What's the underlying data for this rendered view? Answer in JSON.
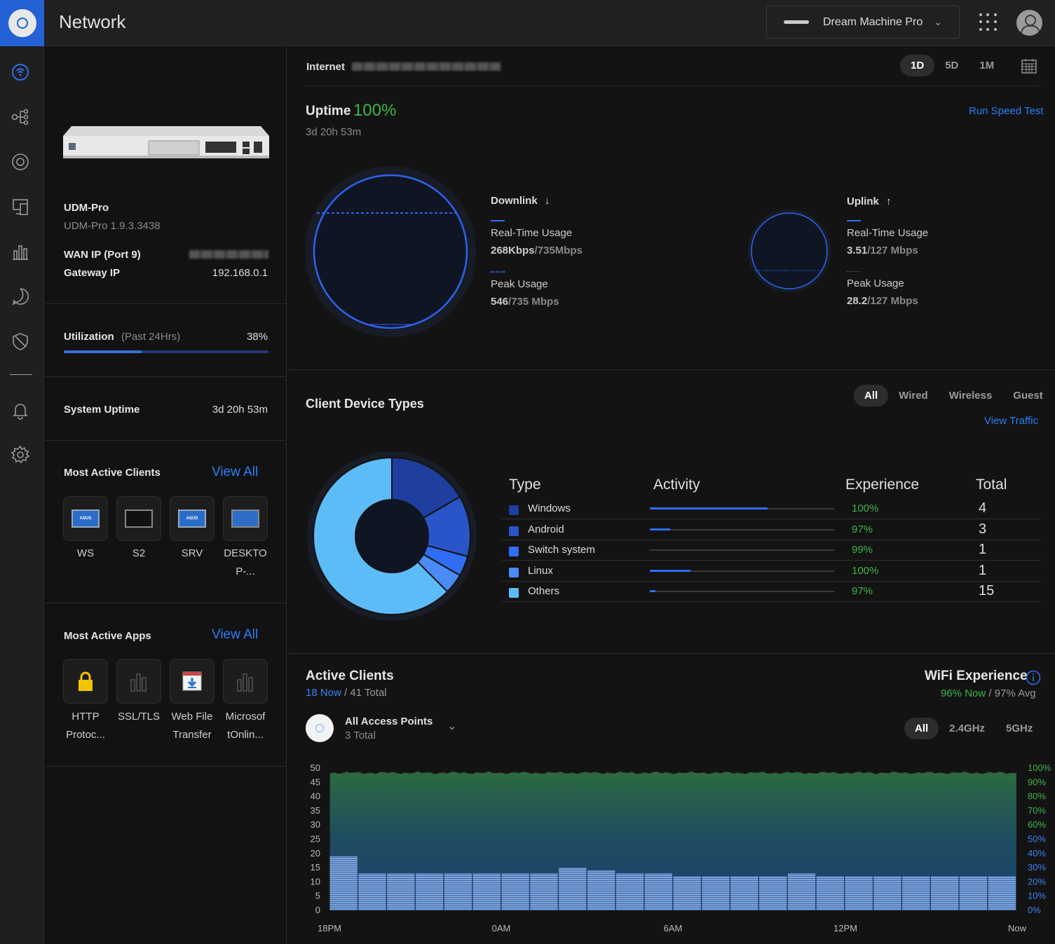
{
  "topbar": {
    "title": "Network",
    "device": "Dream Machine Pro"
  },
  "sidebar": {
    "items": [
      "dashboard",
      "topology",
      "devices",
      "clients",
      "statistics",
      "insights",
      "security",
      "notifications",
      "settings"
    ]
  },
  "device": {
    "model": "UDM-Pro",
    "version": "UDM-Pro 1.9.3.3438",
    "wan_label": "WAN IP (Port 9)",
    "gateway_label": "Gateway IP",
    "gateway_value": "192.168.0.1"
  },
  "utilization": {
    "label": "Utilization",
    "period": "(Past 24Hrs)",
    "value": "38%",
    "fraction": 0.38
  },
  "system_uptime": {
    "label": "System Uptime",
    "value": "3d 20h 53m"
  },
  "active_clients_panel": {
    "title": "Most Active Clients",
    "view_all": "View All",
    "clients": [
      {
        "name": "WS",
        "line2": ""
      },
      {
        "name": "S2",
        "line2": ""
      },
      {
        "name": "SRV",
        "line2": ""
      },
      {
        "name": "DESKTO",
        "line2": "P-..."
      }
    ]
  },
  "active_apps_panel": {
    "title": "Most Active Apps",
    "view_all": "View All",
    "apps": [
      {
        "line1": "HTTP",
        "line2": "Protoc..."
      },
      {
        "line1": "SSL/TLS",
        "line2": ""
      },
      {
        "line1": "Web File",
        "line2": "Transfer"
      },
      {
        "line1": "Microsof",
        "line2": "tOnlin..."
      }
    ]
  },
  "internet": {
    "label": "Internet",
    "ranges": [
      "1D",
      "5D",
      "1M"
    ],
    "uptime_label": "Uptime",
    "uptime_value": "100%",
    "uptime_duration": "3d 20h 53m",
    "speed_test": "Run Speed Test",
    "downlink": {
      "label": "Downlink",
      "arrow": "↓",
      "rt_label": "Real-Time Usage",
      "rt_value": "268Kbps",
      "rt_max": "/735Mbps",
      "peak_label": "Peak Usage",
      "peak_value": "546",
      "peak_max": "/735 Mbps"
    },
    "uplink": {
      "label": "Uplink",
      "arrow": "↑",
      "rt_label": "Real-Time Usage",
      "rt_value": "3.51",
      "rt_max": "/127 Mbps",
      "peak_label": "Peak Usage",
      "peak_value": "28.2",
      "peak_max": "/127 Mbps"
    }
  },
  "client_types": {
    "title": "Client Device Types",
    "filters": [
      "All",
      "Wired",
      "Wireless",
      "Guest"
    ],
    "view_traffic": "View Traffic",
    "headers": {
      "type": "Type",
      "activity": "Activity",
      "experience": "Experience",
      "total": "Total"
    },
    "rows": [
      {
        "type": "Windows",
        "activity": 0.64,
        "experience": "100%",
        "total": "4",
        "color": "#1e3fa0"
      },
      {
        "type": "Android",
        "activity": 0.11,
        "experience": "97%",
        "total": "3",
        "color": "#2a55c8"
      },
      {
        "type": "Switch system",
        "activity": 0.0,
        "experience": "99%",
        "total": "1",
        "color": "#2f6df2"
      },
      {
        "type": "Linux",
        "activity": 0.22,
        "experience": "100%",
        "total": "1",
        "color": "#4a8cf5"
      },
      {
        "type": "Others",
        "activity": 0.03,
        "experience": "97%",
        "total": "15",
        "color": "#5cbcf8"
      }
    ]
  },
  "active_clients": {
    "title": "Active Clients",
    "now": "18 Now",
    "total": " / 41 Total",
    "wifi_title": "WiFi Experience",
    "wifi_now": "96% Now",
    "wifi_avg": " / 97% Avg",
    "ap_name": "All Access Points",
    "ap_total": "3 Total",
    "bands": [
      "All",
      "2.4GHz",
      "5GHz"
    ]
  },
  "chart_data": {
    "type": "area",
    "y_left_ticks": [
      "50",
      "45",
      "40",
      "35",
      "30",
      "25",
      "20",
      "15",
      "10",
      "5",
      "0"
    ],
    "y_right_ticks": [
      "100%",
      "90%",
      "80%",
      "70%",
      "60%",
      "50%",
      "40%",
      "30%",
      "20%",
      "10%",
      "0%"
    ],
    "x_ticks": [
      "18PM",
      "0AM",
      "6AM",
      "12PM",
      "Now"
    ],
    "ylim": [
      0,
      50
    ],
    "series": [
      {
        "name": "WiFi Experience",
        "values_percent_constant": 97
      },
      {
        "name": "Clients",
        "values": [
          19,
          13,
          13,
          13,
          13,
          13,
          13,
          13,
          15,
          14,
          13,
          13,
          12,
          12,
          12,
          12,
          13,
          12,
          12,
          12,
          12,
          12,
          12,
          12
        ]
      }
    ]
  }
}
